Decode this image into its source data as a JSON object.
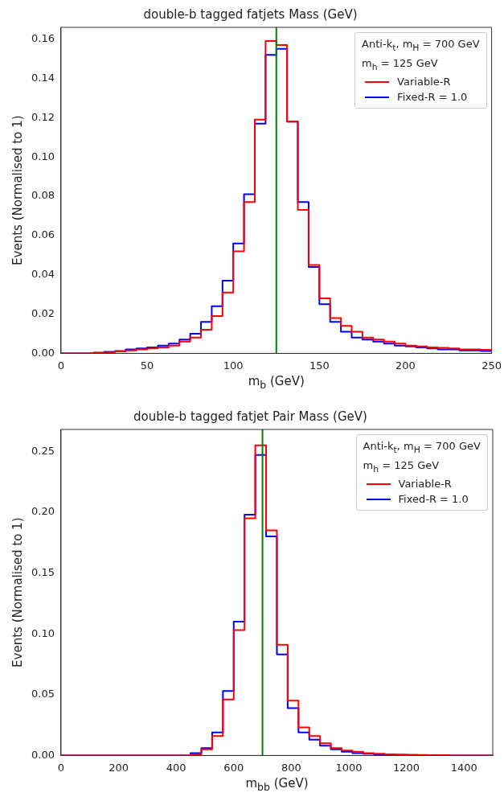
{
  "chart_data": [
    {
      "type": "histogram",
      "title": "double-b tagged fatjets Mass (GeV)",
      "xlabel": "m$_{b}$ (GeV)",
      "ylabel": "Events (Normalised to 1)",
      "legend_title": "Anti-k$_{t}$, m$_{H}$ = 700 GeV\nm$_{h}$ = 125 GeV",
      "legend": "top right",
      "grid": false,
      "bins": [
        0,
        6.25,
        12.5,
        18.75,
        25,
        31.25,
        37.5,
        43.75,
        50,
        56.25,
        62.5,
        68.75,
        75,
        81.25,
        87.5,
        93.75,
        100,
        106.25,
        112.5,
        118.75,
        125,
        131.25,
        137.5,
        143.75,
        150,
        156.25,
        162.5,
        168.75,
        175,
        181.25,
        187.5,
        193.75,
        200,
        206.25,
        212.5,
        218.75,
        225,
        231.25,
        237.5,
        243.75,
        250
      ],
      "series": [
        {
          "name": "Variable-R",
          "color": "#ff0000",
          "values": [
            0,
            0,
            0,
            0.0002,
            0.0005,
            0.001,
            0.0015,
            0.002,
            0.0025,
            0.003,
            0.004,
            0.006,
            0.008,
            0.012,
            0.019,
            0.031,
            0.052,
            0.077,
            0.119,
            0.159,
            0.157,
            0.118,
            0.073,
            0.045,
            0.028,
            0.018,
            0.014,
            0.011,
            0.008,
            0.007,
            0.006,
            0.005,
            0.004,
            0.0035,
            0.003,
            0.0028,
            0.0025,
            0.002,
            0.002,
            0.0018
          ]
        },
        {
          "name": "Fixed-R = 1.0",
          "color": "#0000ff",
          "values": [
            0,
            0,
            0,
            0.0004,
            0.0008,
            0.0012,
            0.002,
            0.0025,
            0.003,
            0.004,
            0.005,
            0.007,
            0.01,
            0.016,
            0.024,
            0.037,
            0.056,
            0.081,
            0.117,
            0.152,
            0.155,
            0.118,
            0.077,
            0.044,
            0.025,
            0.016,
            0.011,
            0.008,
            0.007,
            0.006,
            0.005,
            0.004,
            0.0035,
            0.003,
            0.0025,
            0.002,
            0.002,
            0.0015,
            0.0015,
            0.0012
          ]
        }
      ],
      "ref_lines": [
        {
          "axis": "x",
          "value": 125,
          "color": "#008000"
        }
      ],
      "xlim": [
        0,
        250
      ],
      "xticks": [
        0,
        50,
        100,
        150,
        200,
        250
      ],
      "ylim": [
        0,
        0.166
      ],
      "yticks": [
        {
          "value": 0,
          "label": "0.00"
        },
        {
          "value": 0.02,
          "label": "0.02"
        },
        {
          "value": 0.04,
          "label": "0.04"
        },
        {
          "value": 0.06,
          "label": "0.06"
        },
        {
          "value": 0.08,
          "label": "0.08"
        },
        {
          "value": 0.1,
          "label": "0.10"
        },
        {
          "value": 0.12,
          "label": "0.12"
        },
        {
          "value": 0.14,
          "label": "0.14"
        },
        {
          "value": 0.16,
          "label": "0.16"
        }
      ]
    },
    {
      "type": "histogram",
      "title": "double-b tagged fatjet Pair Mass (GeV)",
      "xlabel": "m$_{bb}$ (GeV)",
      "ylabel": "Events (Normalised to 1)",
      "legend_title": "Anti-k$_{t}$, m$_{H}$ = 700 GeV\nm$_{h}$ = 125 GeV",
      "legend": "top right",
      "grid": false,
      "bins": [
        0,
        37.5,
        75,
        112.5,
        150,
        187.5,
        225,
        262.5,
        300,
        337.5,
        375,
        412.5,
        450,
        487.5,
        525,
        562.5,
        600,
        637.5,
        675,
        712.5,
        750,
        787.5,
        825,
        862.5,
        900,
        937.5,
        975,
        1012.5,
        1050,
        1087.5,
        1125,
        1162.5,
        1200,
        1237.5,
        1275,
        1312.5,
        1350,
        1387.5,
        1425,
        1462.5,
        1500
      ],
      "series": [
        {
          "name": "Variable-R",
          "color": "#ff0000",
          "values": [
            0,
            0,
            0,
            0,
            0,
            0,
            0,
            0,
            0,
            0,
            0,
            0,
            0.001,
            0.005,
            0.016,
            0.046,
            0.103,
            0.195,
            0.255,
            0.185,
            0.091,
            0.045,
            0.023,
            0.016,
            0.01,
            0.006,
            0.004,
            0.003,
            0.002,
            0.0015,
            0.001,
            0.0007,
            0.0005,
            0.0004,
            0.0003,
            0.0002,
            0,
            0,
            0,
            0
          ]
        },
        {
          "name": "Fixed-R = 1.0",
          "color": "#0000ff",
          "values": [
            0,
            0,
            0,
            0,
            0,
            0,
            0,
            0,
            0,
            0,
            0,
            0,
            0.002,
            0.006,
            0.019,
            0.053,
            0.11,
            0.198,
            0.247,
            0.18,
            0.083,
            0.039,
            0.019,
            0.013,
            0.008,
            0.005,
            0.003,
            0.002,
            0.0015,
            0.001,
            0.0007,
            0.0005,
            0.0004,
            0.0003,
            0.0003,
            0.0002,
            0,
            0,
            0,
            0
          ]
        }
      ],
      "ref_lines": [
        {
          "axis": "x",
          "value": 700,
          "color": "#008000"
        }
      ],
      "xlim": [
        0,
        1500
      ],
      "xticks": [
        0,
        200,
        400,
        600,
        800,
        1000,
        1200,
        1400
      ],
      "ylim": [
        0,
        0.268
      ],
      "yticks": [
        {
          "value": 0,
          "label": "0.00"
        },
        {
          "value": 0.05,
          "label": "0.05"
        },
        {
          "value": 0.1,
          "label": "0.10"
        },
        {
          "value": 0.15,
          "label": "0.15"
        },
        {
          "value": 0.2,
          "label": "0.20"
        },
        {
          "value": 0.25,
          "label": "0.25"
        }
      ]
    }
  ]
}
